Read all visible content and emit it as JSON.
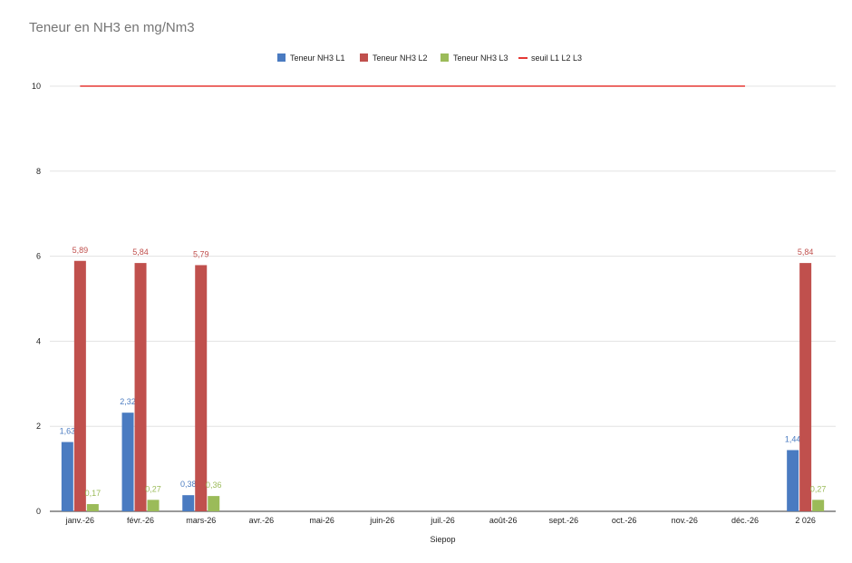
{
  "chart_data": {
    "type": "bar",
    "title": "Teneur en NH3 en mg/Nm3",
    "xlabel": "Siepop",
    "ylabel": "",
    "ylim": [
      0,
      10
    ],
    "yticks": [
      "0",
      "2",
      "4",
      "6",
      "8",
      "10"
    ],
    "categories": [
      "janv.-26",
      "févr.-26",
      "mars-26",
      "avr.-26",
      "mai-26",
      "juin-26",
      "juil.-26",
      "août-26",
      "sept.-26",
      "oct.-26",
      "nov.-26",
      "déc.-26",
      "2 026"
    ],
    "series": [
      {
        "name": "Teneur NH3 L1",
        "color": "#4a7bc1",
        "values": [
          1.63,
          2.32,
          0.38,
          null,
          null,
          null,
          null,
          null,
          null,
          null,
          null,
          null,
          1.44
        ],
        "labels": [
          "1,63",
          "2,32",
          "0,38",
          "",
          "",
          "",
          "",
          "",
          "",
          "",
          "",
          "",
          "1,44"
        ]
      },
      {
        "name": "Teneur NH3 L2",
        "color": "#c0504d",
        "values": [
          5.89,
          5.84,
          5.79,
          null,
          null,
          null,
          null,
          null,
          null,
          null,
          null,
          null,
          5.84
        ],
        "labels": [
          "5,89",
          "5,84",
          "5,79",
          "",
          "",
          "",
          "",
          "",
          "",
          "",
          "",
          "",
          "5,84"
        ]
      },
      {
        "name": "Teneur NH3 L3",
        "color": "#9bbb59",
        "values": [
          0.17,
          0.27,
          0.36,
          null,
          null,
          null,
          null,
          null,
          null,
          null,
          null,
          null,
          0.27
        ],
        "labels": [
          "0,17",
          "0,27",
          "0,36",
          "",
          "",
          "",
          "",
          "",
          "",
          "",
          "",
          "",
          "0,27"
        ]
      }
    ],
    "threshold": {
      "name": "seuil L1 L2 L3",
      "color": "#e53935",
      "value": 10,
      "from_category": "janv.-26",
      "to_category": "déc.-26"
    },
    "legend_position": "top",
    "grid": true
  }
}
